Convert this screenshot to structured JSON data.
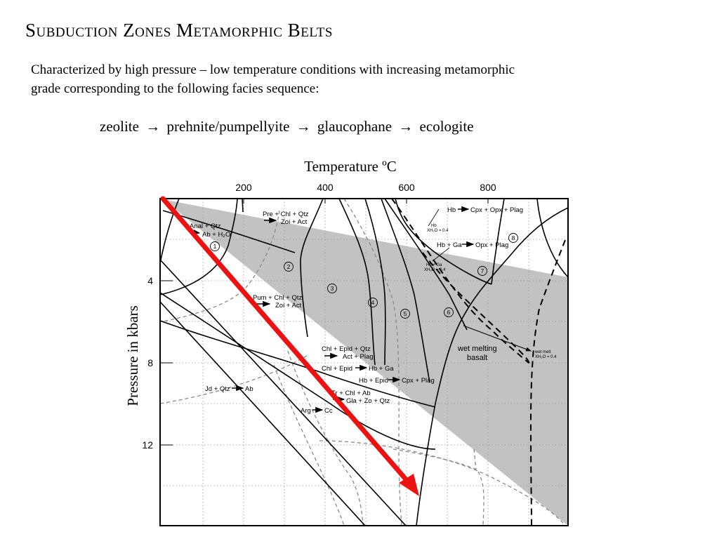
{
  "slide": {
    "title": "Subduction Zones Metamorphic Belts",
    "intro_line1": "Characterized by high pressure – low temperature conditions with increasing metamorphic",
    "intro_line2": "grade corresponding to the following facies sequence:",
    "sequence": {
      "zeolite": "zeolite",
      "prehnite": "prehnite/pumpellyite",
      "glaucophane": "glaucophane",
      "eclogite": "ecologite",
      "arrow": "→"
    }
  },
  "diagram": {
    "x_title": "Temperature ºC",
    "y_title": "Pressure in kbars",
    "x_ticks": [
      "200",
      "400",
      "600",
      "800"
    ],
    "y_ticks": [
      "4",
      "8",
      "12"
    ],
    "reactions": {
      "anal": "Anal + Qtz",
      "ab_h2o": "Ab + H₂O",
      "pre": "Pre + Chl + Qtz",
      "zoi_act1": "Zoi + Act",
      "pum": "Pum + Chl + Qtz",
      "zoi_act2": "Zoi + Act",
      "chl_epid_qtz": "Chl + Epid + Qtz",
      "act_plag": "Act + Plag",
      "chl_epid": "Chl + Epid",
      "hb_ga1": "Hb + Ga",
      "hb_epid": "Hb + Epid",
      "cpx_plag": "Cpx + Plag",
      "tr_chl_ab": "Tr + Chl + Ab",
      "gla_zo_qtz": "Gla + Zo + Qtz",
      "jd_qtz": "Jd + Qtz",
      "ab": "Ab",
      "arg": "Arg",
      "cc": "Cc",
      "hb1": "Hb",
      "cpx_opx_plag1": "Cpx + Opx + Plag",
      "hb_small": "Hb",
      "xh2o_1": "XH₂O = 0.4",
      "hb_ga2": "Hb + Ga",
      "opx_plag": "Opx + Plag",
      "hb_ga_small": "Hb + Ga",
      "xh2o_2": "XH₂O = 0.4",
      "wet_melting": "wet melting",
      "basalt": "basalt",
      "wet_melt": "wet melt",
      "xh2o_3": "XH₂O = 0.4"
    },
    "numbers": [
      "1",
      "2",
      "3",
      "4",
      "5",
      "6",
      "7",
      "8"
    ],
    "colors": {
      "facies_zone": "#c2c2c2",
      "path_arrow": "#ee1111",
      "dashed_lines": "#8a8a8a"
    }
  }
}
